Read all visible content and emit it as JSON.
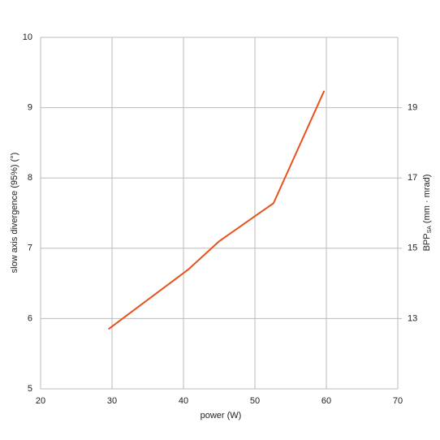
{
  "chart_data": {
    "type": "line",
    "x_label": "power (W)",
    "y_label": "slow axis divergence (95%) (°)",
    "y2_label": [
      "BPP",
      "SA",
      "(mm · mrad)"
    ],
    "x": [
      29.5,
      40.7,
      45.0,
      50.2,
      52.6,
      59.7
    ],
    "series": [
      {
        "color": "#e8521c",
        "values": [
          5.85,
          6.7,
          7.1,
          7.47,
          7.64,
          9.24
        ]
      }
    ],
    "xlim": [
      20,
      70
    ],
    "xticks": [
      20,
      30,
      40,
      50,
      60,
      70
    ],
    "ylim": [
      5,
      10
    ],
    "yticks": [
      5,
      6,
      7,
      8,
      9,
      10
    ],
    "y2lim": [
      11,
      21
    ],
    "y2ticks": [
      13,
      15,
      17,
      19
    ],
    "grid": true
  }
}
